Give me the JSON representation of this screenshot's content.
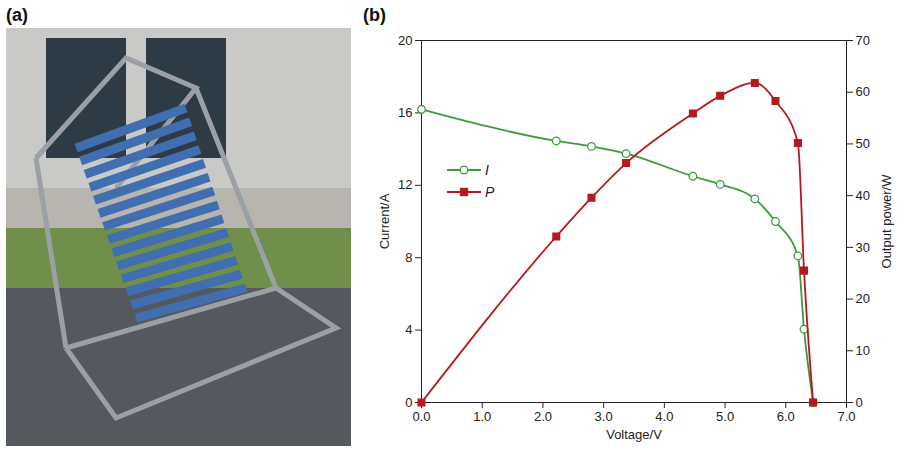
{
  "photo_panel": {
    "label": "(a)"
  },
  "chart_data": {
    "type": "line",
    "panel_label": "(b)",
    "x_label": "Voltage/V",
    "y_label": "Current/A",
    "y2_label": "Output power/W",
    "x": [
      0,
      2.22,
      2.8,
      3.37,
      4.47,
      4.92,
      5.49,
      5.83,
      6.2,
      6.3,
      6.45
    ],
    "series": [
      {
        "name": "I",
        "color": "#3d9b3d",
        "marker": "circle",
        "values": [
          16.2,
          14.45,
          14.15,
          13.75,
          12.5,
          12.05,
          11.25,
          10.0,
          8.1,
          4.05,
          0
        ]
      },
      {
        "name": "P",
        "color": "#b5191f",
        "marker": "square",
        "axis": "y2",
        "values": [
          0,
          32.1,
          39.6,
          46.3,
          55.9,
          59.3,
          61.8,
          58.3,
          50.2,
          25.5,
          0
        ]
      }
    ],
    "xlim": [
      0,
      7
    ],
    "xticks": [
      0,
      1,
      2,
      3,
      4,
      5,
      6,
      7
    ],
    "ylim": [
      0,
      20
    ],
    "yticks": [
      0,
      4,
      8,
      12,
      16,
      20
    ],
    "y2lim": [
      0,
      70
    ],
    "y2ticks": [
      0,
      10,
      20,
      30,
      40,
      50,
      60,
      70
    ],
    "legend": "upper left"
  }
}
